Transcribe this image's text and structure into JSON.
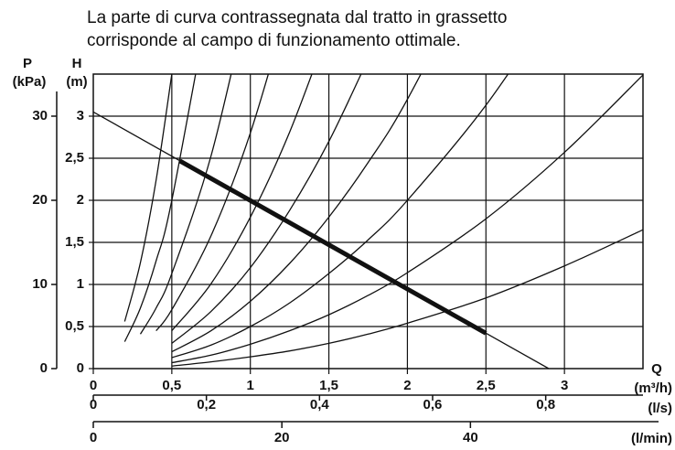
{
  "chart_data": {
    "type": "line",
    "title": [
      "La parte di curva contrassegnata dal tratto in grassetto",
      "corrisponde al campo di funzionamento ottimale."
    ],
    "x_label": "Q",
    "x_unit": "(m³/h)",
    "y_label": "H",
    "y_unit": "(m)",
    "p_label": "P",
    "p_unit": "(kPa)",
    "ls_unit": "(l/s)",
    "lmin_unit": "(l/min)",
    "xlim": [
      0,
      3.5
    ],
    "ylim": [
      0,
      3.5
    ],
    "xticks": [
      0,
      {
        "value": 0.5,
        "label": "0,5"
      },
      1,
      {
        "value": 1.5,
        "label": "1,5"
      },
      2,
      {
        "value": 2.5,
        "label": "2,5"
      },
      3
    ],
    "yticks": [
      0,
      {
        "value": 0.5,
        "label": "0,5"
      },
      1,
      {
        "value": 1.5,
        "label": "1,5"
      },
      2,
      {
        "value": 2.5,
        "label": "2,5"
      },
      3
    ],
    "plim": [
      0,
      35
    ],
    "pticks": [
      0,
      10,
      20,
      30
    ],
    "lslim": [
      0,
      0.972
    ],
    "lsticks": [
      0,
      {
        "value": 0.2,
        "label": "0,2"
      },
      {
        "value": 0.4,
        "label": "0,4"
      },
      {
        "value": 0.6,
        "label": "0,6"
      },
      {
        "value": 0.8,
        "label": "0,8"
      }
    ],
    "lminlim": [
      0,
      58.3
    ],
    "lminticks": [
      0,
      20,
      40
    ],
    "grid": true,
    "color": "#111",
    "series": [
      {
        "x": [
          0.5,
          0.75,
          1,
          1.25,
          1.5,
          1.75,
          2,
          2.5,
          3,
          3.5
        ],
        "values": [
          0.03,
          0.08,
          0.14,
          0.21,
          0.3,
          0.41,
          0.54,
          0.84,
          1.22,
          1.65
        ]
      },
      {
        "x": [
          0.5,
          0.75,
          1,
          1.25,
          1.5,
          1.75,
          2,
          2.5,
          3,
          3.5
        ],
        "values": [
          0.07,
          0.16,
          0.29,
          0.45,
          0.64,
          0.87,
          1.14,
          1.78,
          2.57,
          3.49
        ]
      },
      {
        "x": [
          0.5,
          0.75,
          1,
          1.25,
          1.5,
          1.75,
          2,
          2.5,
          3
        ],
        "values": [
          0.13,
          0.28,
          0.5,
          0.78,
          1.13,
          1.53,
          2,
          3.13,
          4.5
        ]
      },
      {
        "x": [
          0.5,
          0.75,
          1,
          1.25,
          1.5,
          1.75,
          2,
          2.5
        ],
        "values": [
          0.2,
          0.45,
          0.8,
          1.25,
          1.8,
          2.45,
          3.2,
          5
        ]
      },
      {
        "x": [
          0.5,
          0.75,
          1,
          1.25,
          1.5,
          1.75
        ],
        "values": [
          0.3,
          0.68,
          1.2,
          1.88,
          2.7,
          3.68
        ]
      },
      {
        "x": [
          0.5,
          0.75,
          1,
          1.25,
          1.5
        ],
        "values": [
          0.45,
          1.01,
          1.8,
          2.81,
          4.05
        ]
      },
      {
        "x": [
          0.4,
          0.5,
          0.75,
          1,
          1.25
        ],
        "values": [
          0.45,
          0.7,
          1.58,
          2.8,
          4.38
        ]
      },
      {
        "x": [
          0.3,
          0.4,
          0.5,
          0.75,
          1
        ],
        "values": [
          0.41,
          0.72,
          1.13,
          2.53,
          4.5
        ]
      },
      {
        "x": [
          0.2,
          0.3,
          0.4,
          0.5,
          0.75
        ],
        "values": [
          0.32,
          0.72,
          1.28,
          2,
          4.5
        ]
      },
      {
        "x": [
          0.2,
          0.3,
          0.4,
          0.5
        ],
        "values": [
          0.56,
          1.26,
          2.24,
          3.5
        ]
      },
      {
        "x": [
          0,
          2.9
        ],
        "values": [
          3.05,
          0
        ]
      },
      {
        "x": [
          0.55,
          2.5
        ],
        "values": [
          2.47,
          0.42
        ],
        "bold": true
      }
    ]
  }
}
